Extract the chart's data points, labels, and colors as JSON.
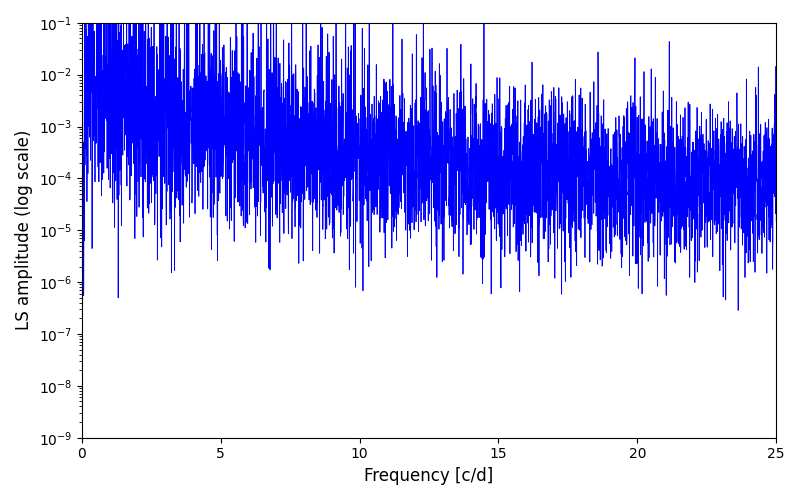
{
  "title": "",
  "xlabel": "Frequency [c/d]",
  "ylabel": "LS amplitude (log scale)",
  "xlim": [
    0,
    25
  ],
  "ylim_log": [
    -9,
    -1
  ],
  "line_color": "#0000ff",
  "line_width": 0.6,
  "background_color": "#ffffff",
  "figsize": [
    8.0,
    5.0
  ],
  "dpi": 100,
  "freq_max": 25.0,
  "n_points": 5000,
  "seed": 42
}
